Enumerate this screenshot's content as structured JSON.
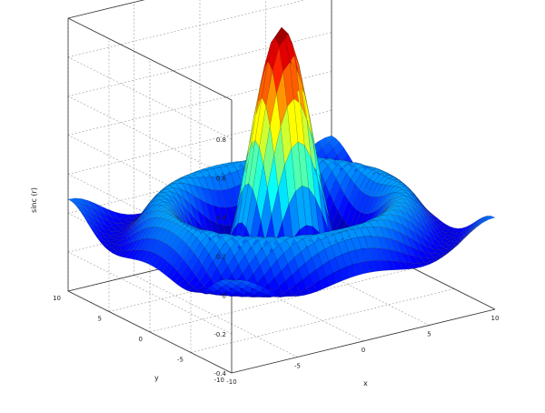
{
  "chart_data": {
    "type": "surface",
    "function": "sin(sqrt(x^2 + y^2)) / sqrt(x^2 + y^2)",
    "colormap": "jet",
    "grid": true,
    "xlabel": "x",
    "ylabel": "y",
    "zlabel": "sinc (r)",
    "xlim": [
      -10,
      10
    ],
    "ylim": [
      -10,
      10
    ],
    "zlim": [
      -0.4,
      1
    ],
    "x_ticks": [
      "-10",
      "-5",
      "0",
      "5",
      "10"
    ],
    "y_ticks": [
      "-10",
      "-5",
      "0",
      "5",
      "10"
    ],
    "z_ticks": [
      "-0.4",
      "-0.2",
      "0",
      "0.2",
      "0.4",
      "0.6",
      "0.8"
    ],
    "peak": {
      "x": 0,
      "y": 0,
      "z": 1
    }
  }
}
